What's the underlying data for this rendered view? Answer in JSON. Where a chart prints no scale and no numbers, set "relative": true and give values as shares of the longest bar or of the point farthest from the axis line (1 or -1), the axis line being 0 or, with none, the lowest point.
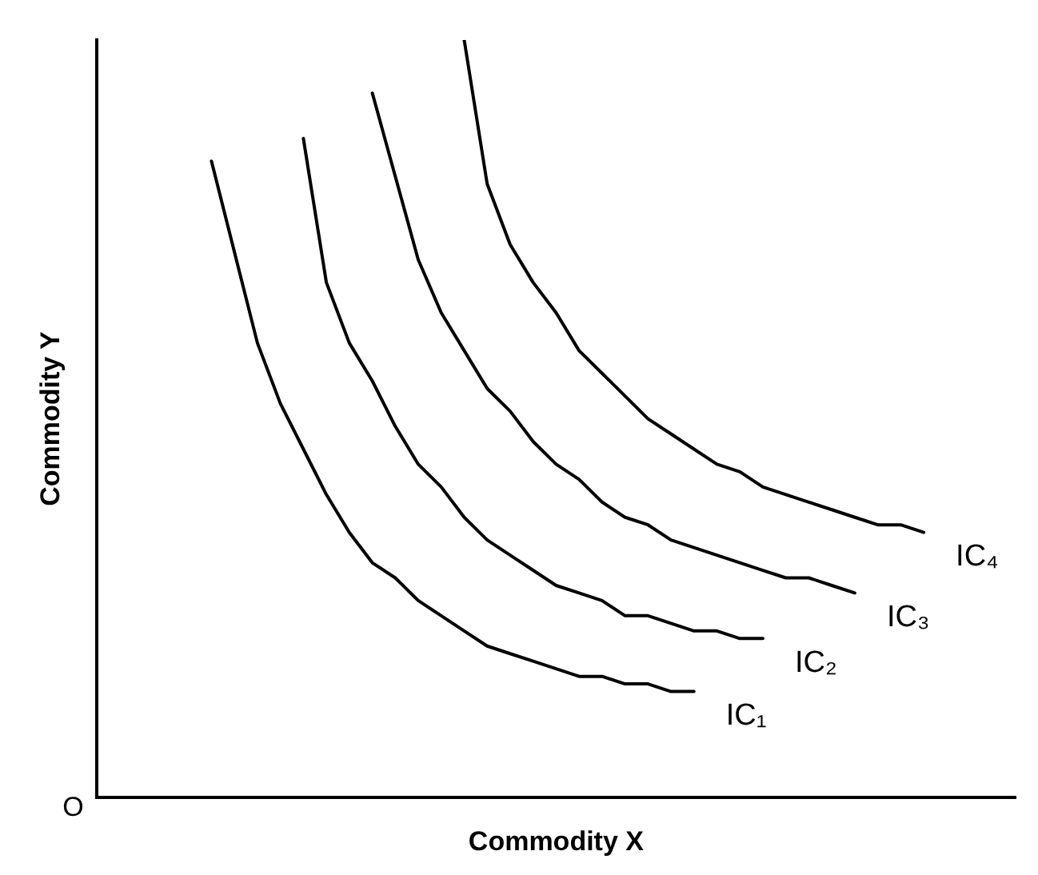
{
  "chart_data": {
    "type": "line",
    "relative": true,
    "xlabel": "Commodity X",
    "ylabel": "Commodity Y",
    "tick_labels": false,
    "legend": false,
    "marker": "none",
    "line_style": "solid",
    "annotations": [
      "O"
    ],
    "categories": [
      null,
      null,
      null,
      null,
      null,
      null,
      null,
      null,
      null,
      null,
      null,
      null,
      null,
      null,
      null,
      null,
      null,
      null,
      null,
      null,
      null,
      null,
      null,
      null,
      null,
      null,
      null,
      null,
      null,
      null,
      null,
      null,
      null,
      null,
      null,
      null,
      null,
      null,
      null,
      null,
      null
    ],
    "series": [
      {
        "name": "IC₁",
        "color": "#000000",
        "values": [
          null,
          null,
          null,
          null,
          null,
          0.84,
          0.72,
          0.6,
          0.52,
          0.46,
          0.4,
          0.35,
          0.31,
          0.29,
          0.26,
          0.24,
          0.22,
          0.2,
          0.19,
          0.18,
          0.17,
          0.16,
          0.16,
          0.15,
          0.15,
          0.14,
          0.14,
          null,
          null,
          null,
          null,
          null,
          null,
          null,
          null,
          null,
          null,
          null,
          null,
          null,
          null
        ]
      },
      {
        "name": "IC₂",
        "color": "#000000",
        "values": [
          null,
          null,
          null,
          null,
          null,
          null,
          null,
          null,
          null,
          0.87,
          0.68,
          0.6,
          0.55,
          0.49,
          0.44,
          0.41,
          0.37,
          0.34,
          0.32,
          0.3,
          0.28,
          0.27,
          0.26,
          0.24,
          0.24,
          0.23,
          0.22,
          0.22,
          0.21,
          0.21,
          null,
          null,
          null,
          null,
          null,
          null,
          null,
          null,
          null,
          null,
          null
        ]
      },
      {
        "name": "IC₃",
        "color": "#000000",
        "values": [
          null,
          null,
          null,
          null,
          null,
          null,
          null,
          null,
          null,
          null,
          null,
          null,
          0.93,
          0.82,
          0.71,
          0.64,
          0.59,
          0.54,
          0.51,
          0.47,
          0.44,
          0.42,
          0.39,
          0.37,
          0.36,
          0.34,
          0.33,
          0.32,
          0.31,
          0.3,
          0.29,
          0.29,
          0.28,
          0.27,
          null,
          null,
          null,
          null,
          null,
          null,
          null
        ]
      },
      {
        "name": "IC₄",
        "color": "#000000",
        "values": [
          null,
          null,
          null,
          null,
          null,
          null,
          null,
          null,
          null,
          null,
          null,
          null,
          null,
          null,
          null,
          null,
          1,
          0.81,
          0.73,
          0.68,
          0.64,
          0.59,
          0.56,
          0.53,
          0.5,
          0.48,
          0.46,
          0.44,
          0.43,
          0.41,
          0.4,
          0.39,
          0.38,
          0.37,
          0.36,
          0.36,
          0.35,
          null,
          null,
          null,
          null
        ]
      }
    ]
  }
}
